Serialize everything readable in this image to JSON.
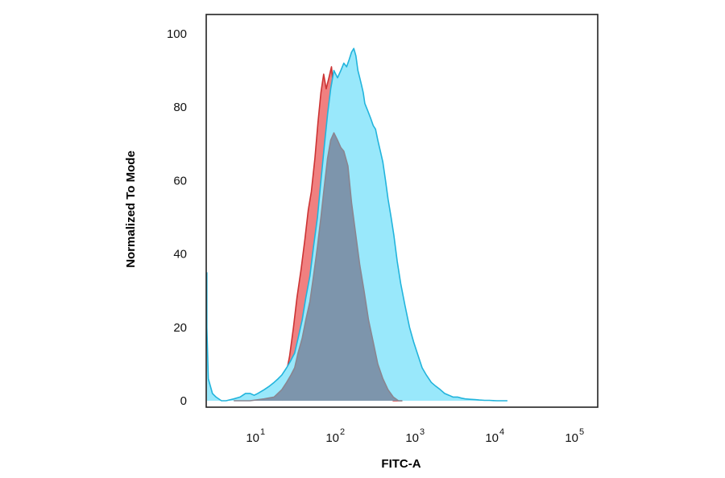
{
  "chart_data": {
    "type": "area",
    "xlabel": "FITC-A",
    "ylabel": "Normalized To Mode",
    "x_scale": "log",
    "xlim": [
      2,
      300000
    ],
    "ylim": [
      0,
      105
    ],
    "grid": false,
    "yticks": [
      0,
      20,
      40,
      60,
      80,
      100
    ],
    "xticks": [
      {
        "value": 10,
        "base": "10",
        "exp": "1"
      },
      {
        "value": 100,
        "base": "10",
        "exp": "2"
      },
      {
        "value": 1000,
        "base": "10",
        "exp": "3"
      },
      {
        "value": 10000,
        "base": "10",
        "exp": "4"
      },
      {
        "value": 100000,
        "base": "10",
        "exp": "5"
      }
    ],
    "series": [
      {
        "color": "#f08080",
        "stroke": "#cc3333",
        "x": [
          20,
          22,
          25,
          28,
          31,
          35,
          39,
          43,
          47,
          52,
          57,
          62,
          67,
          72,
          78,
          84,
          90,
          96,
          103,
          112,
          122,
          135,
          150,
          170,
          190,
          215,
          245,
          280,
          320,
          370,
          430,
          500,
          580,
          650
        ],
        "y": [
          0,
          6,
          12,
          20,
          28,
          36,
          44,
          52,
          57,
          66,
          76,
          84,
          89,
          85,
          88,
          91,
          84,
          80,
          77,
          72,
          64,
          54,
          45,
          37,
          30,
          22,
          16,
          10,
          6,
          3,
          1,
          0,
          0,
          0
        ]
      },
      {
        "color": "#99e8fb",
        "stroke": "#22b4dc",
        "x": [
          2.05,
          2.2,
          2.4,
          2.7,
          3.0,
          3.5,
          4.0,
          5.0,
          6.0,
          7.0,
          8.0,
          9.0,
          10,
          12,
          14,
          16,
          18,
          20,
          23,
          26,
          29,
          32,
          36,
          40,
          45,
          50,
          56,
          62,
          68,
          75,
          82,
          90,
          100,
          110,
          120,
          130,
          140,
          150,
          160,
          170,
          180,
          190,
          200,
          210,
          220,
          240,
          260,
          280,
          300,
          320,
          345,
          370,
          400,
          430,
          470,
          510,
          560,
          620,
          700,
          800,
          900,
          1000,
          1150,
          1300,
          1500,
          1700,
          1950,
          2200,
          2500,
          2800,
          3200,
          3600,
          4000,
          4600,
          5300,
          6000,
          7000,
          8000,
          9000,
          10000,
          11500,
          12500,
          13500
        ],
        "y": [
          35,
          20,
          6,
          2,
          1,
          0,
          0,
          0.5,
          1,
          2,
          2,
          1.5,
          2,
          3,
          4,
          5,
          6,
          7,
          9,
          11,
          13,
          17,
          22,
          28,
          34,
          42,
          50,
          60,
          69,
          78,
          85,
          90,
          88,
          90,
          92,
          91,
          93,
          95,
          96,
          94,
          90,
          88,
          86,
          84,
          81,
          79,
          77,
          75,
          74,
          71,
          68,
          65,
          60,
          55,
          50,
          45,
          38,
          32,
          26,
          20,
          16,
          13,
          9,
          7,
          5,
          4,
          3,
          2,
          1.5,
          1,
          1,
          0.7,
          0.5,
          0.4,
          0.3,
          0.2,
          0.1,
          0.1,
          0.05,
          0,
          0,
          0,
          0
        ]
      },
      {
        "color": "#7b90a8",
        "stroke": "#8a8590",
        "x": [
          5,
          8,
          12,
          16,
          20,
          23,
          26,
          29,
          32,
          36,
          40,
          45,
          50,
          56,
          62,
          68,
          75,
          82,
          90,
          100,
          110,
          120,
          135,
          150,
          170,
          190,
          215,
          245,
          280,
          320,
          370,
          430,
          500,
          580,
          650
        ],
        "y": [
          0,
          0,
          0.5,
          1,
          3,
          5,
          7,
          9,
          13,
          17,
          22,
          27,
          34,
          42,
          50,
          58,
          66,
          71,
          73,
          71,
          69,
          68,
          64,
          54,
          45,
          37,
          30,
          22,
          16,
          10,
          6,
          3,
          1,
          0,
          0
        ]
      }
    ]
  }
}
